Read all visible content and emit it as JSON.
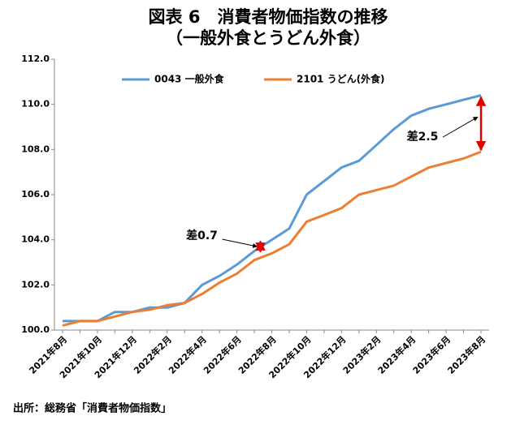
{
  "chart_data": {
    "type": "line",
    "title": "図表 6　消費者物価指数の推移",
    "subtitle": "（一般外食とうどん外食）",
    "categories": [
      "2021年8月",
      null,
      "2021年10月",
      null,
      "2021年12月",
      null,
      "2022年2月",
      null,
      "2022年4月",
      null,
      "2022年6月",
      null,
      "2022年8月",
      null,
      "2022年10月",
      null,
      "2022年12月",
      null,
      "2023年2月",
      null,
      "2023年4月",
      null,
      "2023年6月",
      null,
      "2023年8月"
    ],
    "series": [
      {
        "name": "0043 一般外食",
        "color": "#5b9bd5",
        "values": [
          100.4,
          100.4,
          100.4,
          100.8,
          100.8,
          101.0,
          101.0,
          101.2,
          102.0,
          102.4,
          102.9,
          103.5,
          104.0,
          104.5,
          106.0,
          106.6,
          107.2,
          107.5,
          108.2,
          108.9,
          109.5,
          109.8,
          110.0,
          110.2,
          110.4
        ]
      },
      {
        "name": "2101 うどん(外食)",
        "color": "#ed7d31",
        "values": [
          100.2,
          100.4,
          100.4,
          100.6,
          100.8,
          100.9,
          101.1,
          101.2,
          101.6,
          102.1,
          102.5,
          103.1,
          103.4,
          103.8,
          104.8,
          105.1,
          105.4,
          106.0,
          106.2,
          106.4,
          106.8,
          107.2,
          107.4,
          107.6,
          107.9
        ]
      }
    ],
    "ylim": [
      100,
      112
    ],
    "yticks": [
      {
        "value": 100,
        "label": "100.0"
      },
      {
        "value": 102,
        "label": "102.0"
      },
      {
        "value": 104,
        "label": "104.0"
      },
      {
        "value": 106,
        "label": "106.0"
      },
      {
        "value": 108,
        "label": "108.0"
      },
      {
        "value": 110,
        "label": "110.0"
      },
      {
        "value": 112,
        "label": "112.0"
      }
    ],
    "grid": false,
    "legend": "top",
    "annotations": [
      "差0.7",
      "差2.5"
    ],
    "source": "出所：総務省「消費者物価指数」"
  }
}
